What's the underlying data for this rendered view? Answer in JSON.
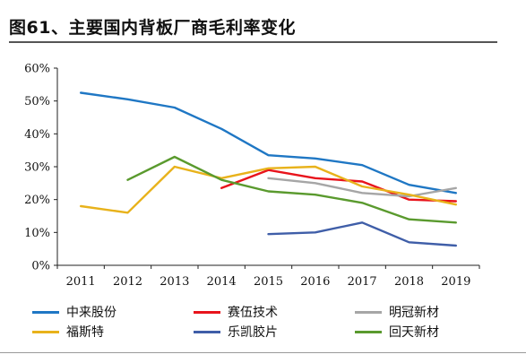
{
  "title": "图61、主要国内背板厂商毛利率变化",
  "chart_data": {
    "type": "line",
    "title": "图61、主要国内背板厂商毛利率变化",
    "xlabel": "",
    "ylabel": "",
    "categories": [
      "2011",
      "2012",
      "2013",
      "2014",
      "2015",
      "2016",
      "2017",
      "2018",
      "2019"
    ],
    "ylim": [
      0,
      60
    ],
    "yticks": [
      0,
      10,
      20,
      30,
      40,
      50,
      60
    ],
    "ytick_labels": [
      "0%",
      "10%",
      "20%",
      "30%",
      "40%",
      "50%",
      "60%"
    ],
    "grid": false,
    "legend_position": "bottom",
    "series": [
      {
        "name": "中来股份",
        "color": "#1f77c4",
        "values": [
          52.5,
          50.5,
          48,
          41.5,
          33.5,
          32.5,
          30.5,
          24.5,
          22
        ]
      },
      {
        "name": "赛伍技术",
        "color": "#e8141c",
        "values": [
          null,
          null,
          null,
          23.5,
          29,
          26.5,
          25.5,
          20,
          19.5
        ]
      },
      {
        "name": "明冠新材",
        "color": "#a6a6a6",
        "values": [
          null,
          null,
          null,
          null,
          26.5,
          25,
          22,
          21,
          23.5
        ]
      },
      {
        "name": "福斯特",
        "color": "#e8b21b",
        "values": [
          18,
          16,
          30,
          26.5,
          29.5,
          30,
          24,
          21.5,
          18.5
        ]
      },
      {
        "name": "乐凯胶片",
        "color": "#3f5ea8",
        "values": [
          null,
          null,
          null,
          null,
          9.5,
          10,
          13,
          7,
          6
        ]
      },
      {
        "name": "回天新材",
        "color": "#5a9a2e",
        "values": [
          null,
          26,
          33,
          26,
          22.5,
          21.5,
          19,
          14,
          13
        ]
      }
    ]
  }
}
